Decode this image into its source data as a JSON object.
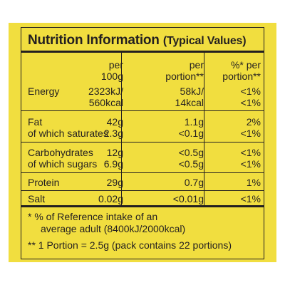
{
  "title": {
    "main": "Nutrition Information",
    "sub": "(Typical Values)"
  },
  "columns": {
    "per_100g": [
      "per",
      "100g"
    ],
    "per_portion": [
      "per",
      "portion**"
    ],
    "ri": [
      "%* per",
      "portion**"
    ]
  },
  "rows": [
    {
      "label": "Energy",
      "per_100g": [
        "2323kJ/",
        "560kcal"
      ],
      "per_portion": [
        "58kJ/",
        "14kcal"
      ],
      "ri": [
        "<1%",
        "<1%"
      ]
    },
    {
      "label": "Fat",
      "per_100g": "42g",
      "per_portion": "1.1g",
      "ri": "2%"
    },
    {
      "label": "of which saturates",
      "per_100g": "2.3g",
      "per_portion": "<0.1g",
      "ri": "<1%"
    },
    {
      "label": "Carbohydrates",
      "per_100g": "12g",
      "per_portion": "<0.5g",
      "ri": "<1%"
    },
    {
      "label": "of which sugars",
      "per_100g": "6.9g",
      "per_portion": "<0.5g",
      "ri": "<1%"
    },
    {
      "label": "Protein",
      "per_100g": "29g",
      "per_portion": "0.7g",
      "ri": "1%"
    },
    {
      "label": "Salt",
      "per_100g": "0.02g",
      "per_portion": "<0.01g",
      "ri": "<1%"
    }
  ],
  "footnotes": {
    "ri_line1": "*  % of Reference intake of an",
    "ri_line2": "average adult (8400kJ/2000kcal)",
    "portion": "** 1 Portion = 2.5g (pack contains 22 portions)"
  },
  "colors": {
    "background": "#f1de3f",
    "ink": "#231f20"
  }
}
